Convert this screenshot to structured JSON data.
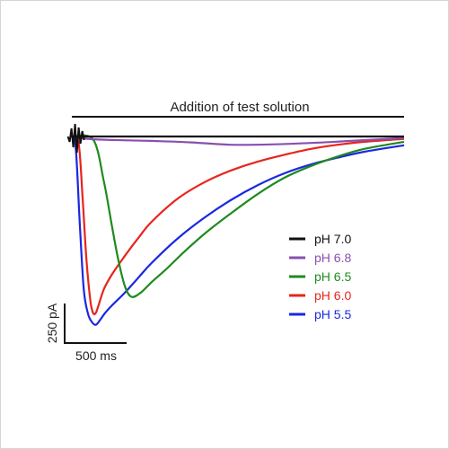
{
  "chart_data": {
    "type": "line",
    "title": "",
    "annotation": "Addition of test solution",
    "xlabel": "",
    "ylabel": "",
    "x_unit": "ms",
    "y_unit": "pA",
    "scale_bars": {
      "time_label": "500 ms",
      "time_value": 500,
      "current_label": "250 pA",
      "current_value": 250
    },
    "xlim": [
      0,
      2500
    ],
    "ylim": [
      -650,
      0
    ],
    "legend_position": "right",
    "grid": false,
    "series": [
      {
        "name": "pH 7.0",
        "color": "#111111",
        "x": [
          0,
          300,
          800,
          1400,
          2000,
          2500
        ],
        "y": [
          0,
          0,
          0,
          0,
          0,
          0
        ]
      },
      {
        "name": "pH 6.8",
        "color": "#8a4fb0",
        "x": [
          0,
          120,
          300,
          600,
          900,
          1200,
          1500,
          1800,
          2100,
          2500
        ],
        "y": [
          0,
          -8,
          -12,
          -15,
          -20,
          -28,
          -27,
          -22,
          -15,
          -5
        ]
      },
      {
        "name": "pH 6.5",
        "color": "#1f8a1f",
        "x": [
          0,
          160,
          240,
          300,
          350,
          400,
          450,
          520,
          600,
          700,
          850,
          1000,
          1200,
          1400,
          1600,
          1800,
          2000,
          2200,
          2500
        ],
        "y": [
          0,
          -10,
          -150,
          -300,
          -420,
          -510,
          -545,
          -530,
          -495,
          -455,
          -390,
          -330,
          -260,
          -195,
          -140,
          -100,
          -68,
          -42,
          -18
        ]
      },
      {
        "name": "pH 6.0",
        "color": "#e8241c",
        "x": [
          0,
          50,
          80,
          110,
          140,
          160,
          180,
          200,
          240,
          300,
          400,
          500,
          600,
          800,
          1000,
          1200,
          1400,
          1600,
          1800,
          2000,
          2200,
          2500
        ],
        "y": [
          0,
          -20,
          -200,
          -420,
          -560,
          -600,
          -600,
          -575,
          -520,
          -470,
          -405,
          -345,
          -290,
          -210,
          -155,
          -115,
          -85,
          -62,
          -42,
          -28,
          -18,
          -8
        ]
      },
      {
        "name": "pH 5.5",
        "color": "#1a28e0",
        "x": [
          0,
          30,
          60,
          90,
          120,
          150,
          180,
          210,
          250,
          300,
          400,
          500,
          600,
          800,
          1000,
          1200,
          1400,
          1600,
          1800,
          2000,
          2200,
          2500
        ],
        "y": [
          0,
          -40,
          -300,
          -520,
          -600,
          -630,
          -640,
          -625,
          -600,
          -575,
          -530,
          -480,
          -430,
          -345,
          -275,
          -215,
          -165,
          -125,
          -95,
          -72,
          -52,
          -30
        ]
      }
    ]
  }
}
